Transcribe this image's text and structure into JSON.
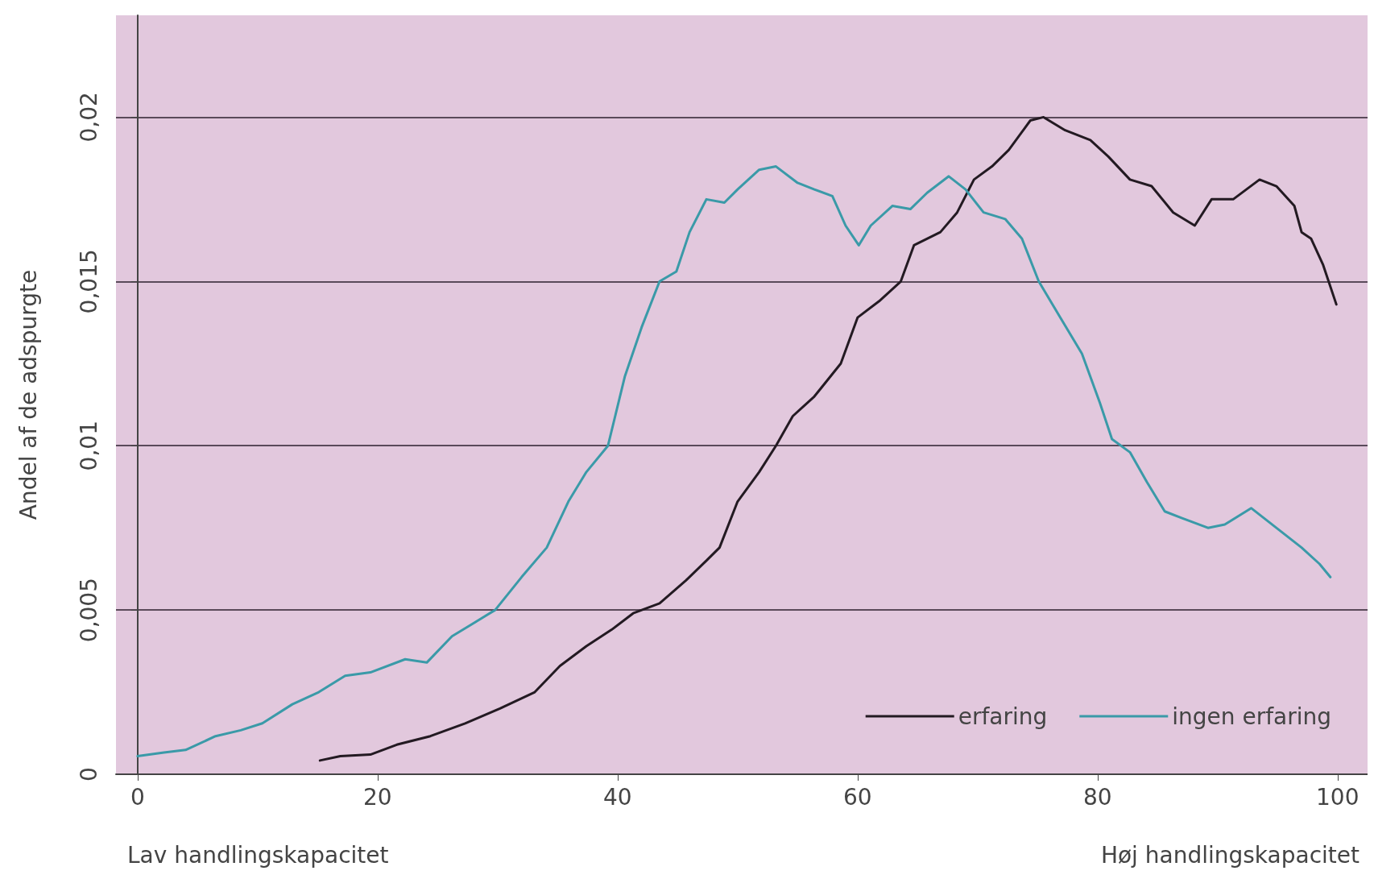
{
  "chart_data": {
    "type": "line",
    "ylabel": "Andel af de adspurgte",
    "annotations": [
      "Lav handlingskapacitet",
      "Høj handlingskapacitet"
    ],
    "xlim": [
      -1.8,
      102.5
    ],
    "xticks": [
      0,
      20,
      40,
      60,
      80,
      100
    ],
    "ylim": [
      0,
      0.0231
    ],
    "yticks": [
      0,
      {
        "value": 0.005,
        "label": "0,005"
      },
      {
        "value": 0.01,
        "label": "0,01"
      },
      {
        "value": 0.015,
        "label": "0,015"
      },
      {
        "value": 0.02,
        "label": "0,02"
      }
    ],
    "grid": "y",
    "legend": "bottom right",
    "line_style": "solid",
    "marker": "none",
    "series": [
      {
        "name": "erfaring",
        "color": "#231a22",
        "x": [
          15.2,
          16.9,
          19.4,
          21.6,
          24.4,
          27.3,
          30.2,
          33.1,
          35.2,
          37.4,
          39.5,
          41.3,
          43.5,
          45.7,
          47.4,
          48.5,
          50,
          51.8,
          53.2,
          54.6,
          56.4,
          58.6,
          60,
          61.8,
          63.6,
          64.7,
          66.9,
          68.3,
          69.7,
          71.2,
          72.6,
          74.4,
          75.5,
          77.3,
          79.4,
          80.9,
          82.7,
          84.5,
          86.3,
          88.1,
          89.5,
          91.3,
          93.5,
          94.9,
          96.4,
          97,
          97.8,
          98.8,
          99.9
        ],
        "values": [
          0.00042,
          0.00055,
          0.0006,
          0.0009,
          0.00116,
          0.00155,
          0.002,
          0.0025,
          0.0033,
          0.0039,
          0.0044,
          0.0049,
          0.0052,
          0.0059,
          0.0065,
          0.0069,
          0.0083,
          0.0092,
          0.01,
          0.0109,
          0.0115,
          0.0125,
          0.0139,
          0.0144,
          0.015,
          0.0161,
          0.0165,
          0.0171,
          0.0181,
          0.0185,
          0.019,
          0.0199,
          0.02,
          0.0196,
          0.0193,
          0.0188,
          0.0181,
          0.0179,
          0.0171,
          0.0167,
          0.0175,
          0.0175,
          0.0181,
          0.0179,
          0.0173,
          0.0165,
          0.0163,
          0.0155,
          0.0143
        ]
      },
      {
        "name": "ingen erfaring",
        "color": "#3a9aa8",
        "x": [
          0,
          2.2,
          4,
          6.5,
          8.6,
          10.4,
          12.9,
          15.1,
          17.3,
          19.4,
          22.3,
          24.1,
          26.2,
          28,
          29.8,
          32,
          34.1,
          35.9,
          37.4,
          39.2,
          40.6,
          42,
          43.5,
          44.9,
          46,
          47.4,
          48.9,
          50,
          51.8,
          53.2,
          55,
          56.4,
          57.9,
          59,
          60.1,
          61.1,
          62.9,
          64.4,
          65.8,
          67.6,
          69,
          70.5,
          72.3,
          73.7,
          75.1,
          76.9,
          78.7,
          80.2,
          81.2,
          82.7,
          84.1,
          85.6,
          87,
          89.2,
          90.6,
          92.8,
          94.9,
          97,
          98.5,
          99.4
        ],
        "values": [
          0.00055,
          0.00066,
          0.00074,
          0.00116,
          0.00134,
          0.00155,
          0.00213,
          0.0025,
          0.003,
          0.0031,
          0.0035,
          0.0034,
          0.0042,
          0.0046,
          0.005,
          0.006,
          0.0069,
          0.0083,
          0.0092,
          0.01,
          0.0121,
          0.0136,
          0.015,
          0.0153,
          0.0165,
          0.0175,
          0.0174,
          0.0178,
          0.0184,
          0.0185,
          0.018,
          0.0178,
          0.0176,
          0.0167,
          0.0161,
          0.0167,
          0.0173,
          0.0172,
          0.0177,
          0.0182,
          0.0178,
          0.0171,
          0.0169,
          0.0163,
          0.015,
          0.0139,
          0.0128,
          0.0113,
          0.0102,
          0.0098,
          0.0089,
          0.008,
          0.0078,
          0.0075,
          0.0076,
          0.0081,
          0.0075,
          0.0069,
          0.0064,
          0.006
        ]
      }
    ]
  }
}
